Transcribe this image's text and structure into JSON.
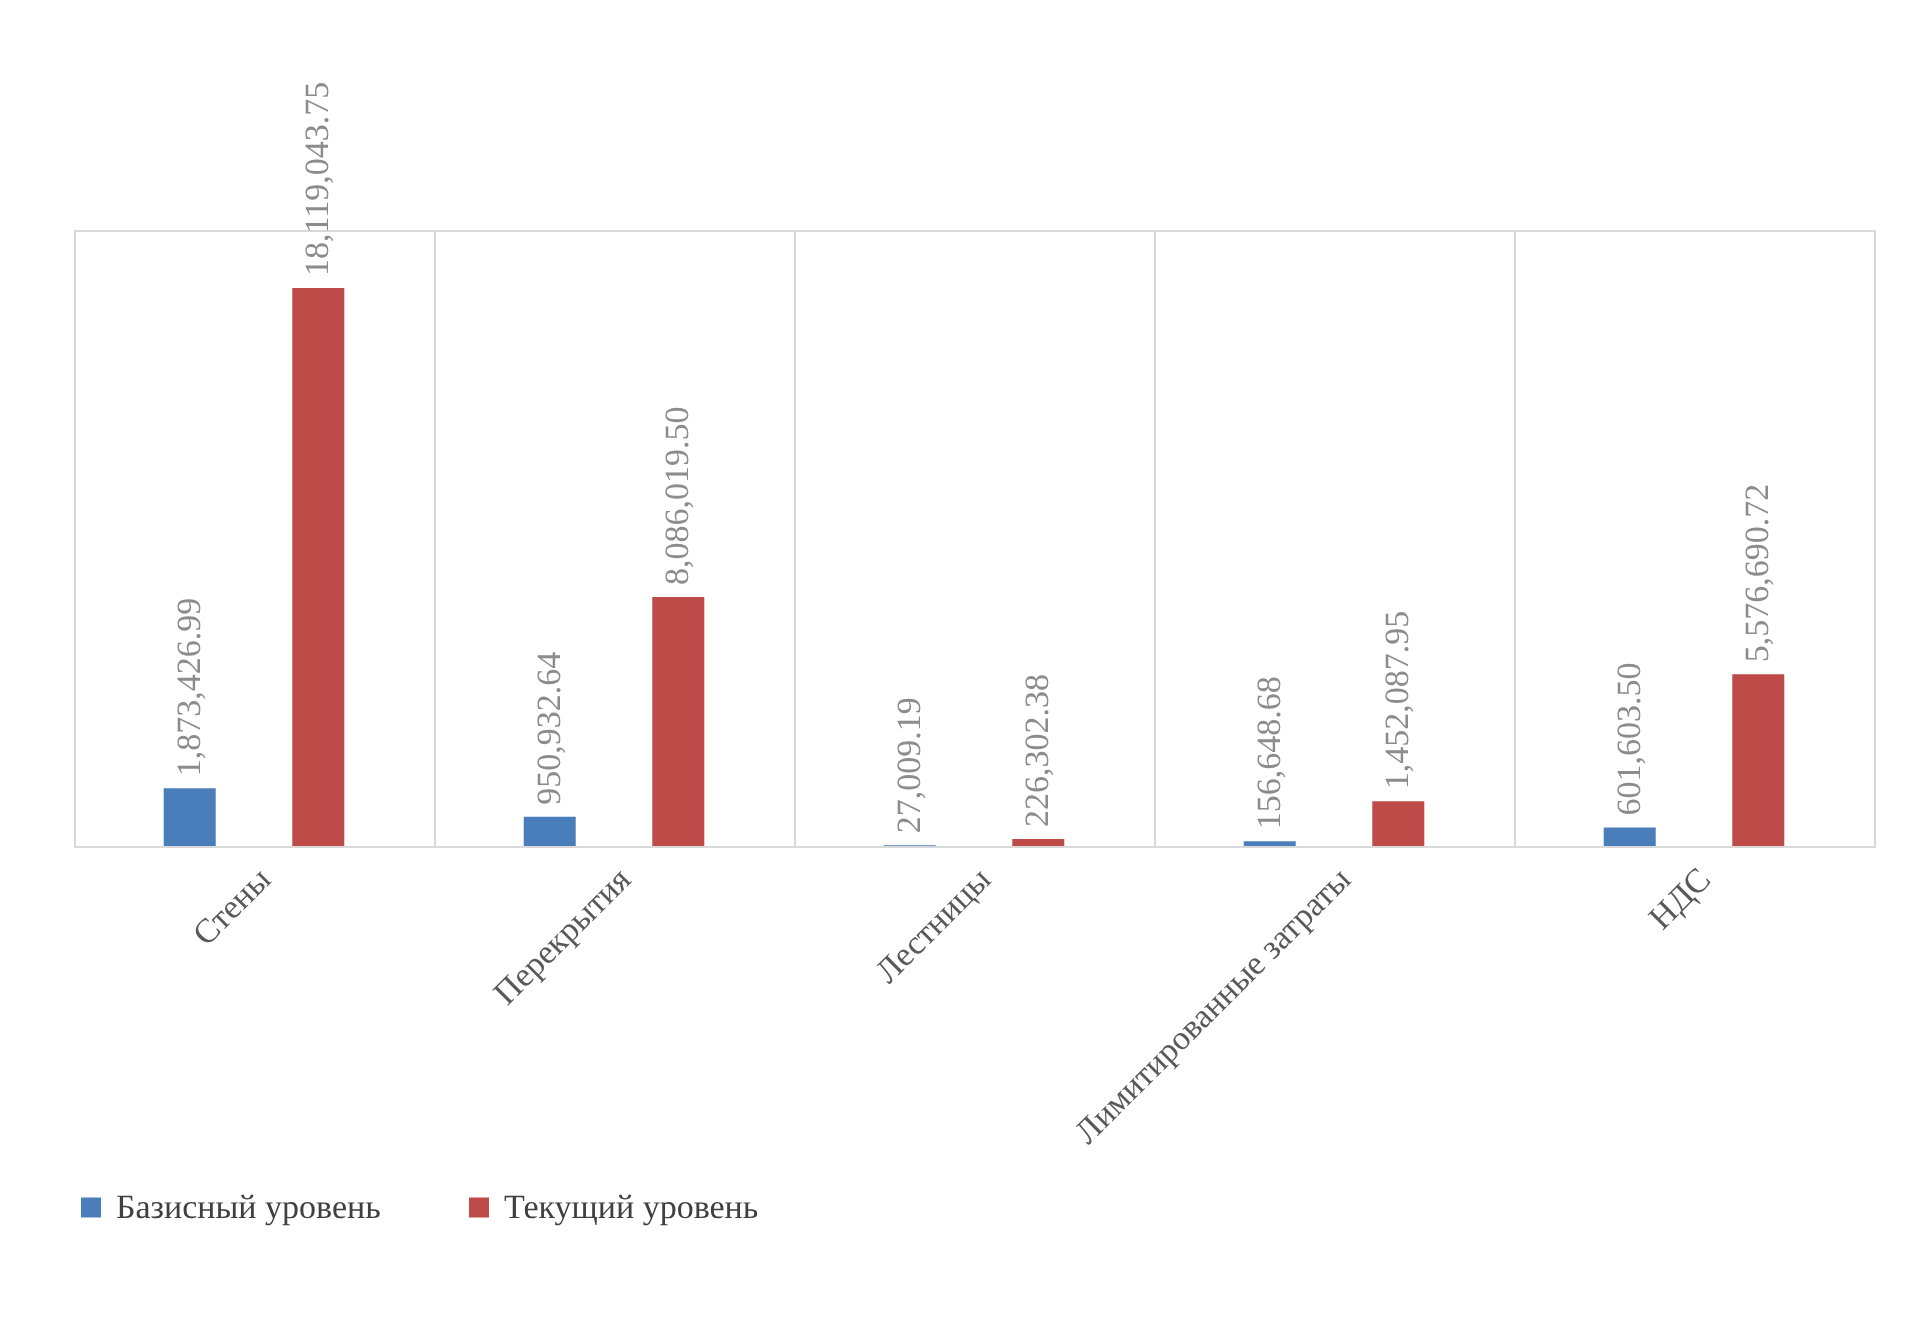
{
  "chart_data": {
    "type": "bar",
    "categories": [
      "Стены",
      "Перекрытия",
      "Лестницы",
      "Лимитированные затраты",
      "НДС"
    ],
    "series": [
      {
        "name": "Базисный уровень",
        "color": "#4a7ebb",
        "values": [
          1873426.99,
          950932.64,
          27009.19,
          156648.68,
          601603.5
        ],
        "value_labels": [
          "1,873,426.99",
          "950,932.64",
          "27,009.19",
          "156,648.68",
          "601,603.50"
        ]
      },
      {
        "name": "Текущий уровень",
        "color": "#be4b48",
        "values": [
          18119043.75,
          8086019.5,
          226302.38,
          1452087.95,
          5576690.72
        ],
        "value_labels": [
          "18,119,043.75",
          "8,086,019.50",
          "226,302.38",
          "1,452,087.95",
          "5,576,690.72"
        ]
      }
    ],
    "tick_labels": "x",
    "grid": "x",
    "legend": "bottom"
  }
}
